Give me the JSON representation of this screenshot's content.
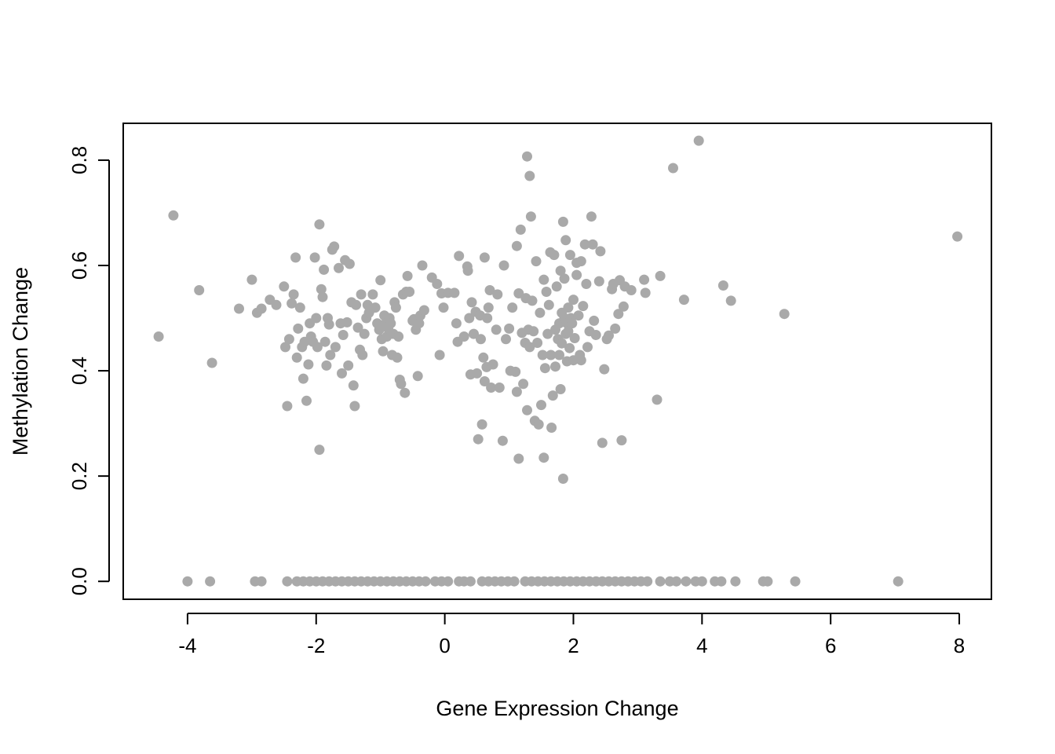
{
  "chart_data": {
    "type": "scatter",
    "title": "",
    "xlabel": "Gene Expression Change",
    "ylabel": "Methylation Change",
    "xlim": [
      -5.0,
      8.5
    ],
    "ylim": [
      -0.034,
      0.87
    ],
    "xticks": [
      -4,
      -2,
      0,
      2,
      4,
      6,
      8
    ],
    "yticks": [
      0.0,
      0.2,
      0.4,
      0.6,
      0.8
    ],
    "xtick_labels": [
      "-4",
      "-2",
      "0",
      "2",
      "4",
      "6",
      "8"
    ],
    "ytick_labels": [
      "0.0",
      "0.2",
      "0.4",
      "0.6",
      "0.8"
    ],
    "point_color": "#a9a9a9",
    "grid": false,
    "series": [
      {
        "points": [
          [
            -4.45,
            0.465
          ],
          [
            -4.22,
            0.695
          ],
          [
            -3.82,
            0.553
          ],
          [
            -3.62,
            0.415
          ],
          [
            -3.2,
            0.518
          ],
          [
            -3.0,
            0.573
          ],
          [
            -2.92,
            0.51
          ],
          [
            -2.85,
            0.518
          ],
          [
            -2.72,
            0.535
          ],
          [
            -2.62,
            0.525
          ],
          [
            -2.5,
            0.56
          ],
          [
            -2.48,
            0.445
          ],
          [
            -2.45,
            0.333
          ],
          [
            -2.42,
            0.46
          ],
          [
            -2.38,
            0.528
          ],
          [
            -2.35,
            0.545
          ],
          [
            -2.32,
            0.615
          ],
          [
            -2.3,
            0.425
          ],
          [
            -2.28,
            0.48
          ],
          [
            -2.25,
            0.52
          ],
          [
            -2.22,
            0.445
          ],
          [
            -2.2,
            0.385
          ],
          [
            -2.18,
            0.455
          ],
          [
            -2.15,
            0.343
          ],
          [
            -2.12,
            0.412
          ],
          [
            -2.1,
            0.49
          ],
          [
            -2.08,
            0.465
          ],
          [
            -2.05,
            0.455
          ],
          [
            -2.02,
            0.615
          ],
          [
            -2.0,
            0.5
          ],
          [
            -1.98,
            0.445
          ],
          [
            -1.95,
            0.25
          ],
          [
            -1.95,
            0.678
          ],
          [
            -1.92,
            0.555
          ],
          [
            -1.9,
            0.54
          ],
          [
            -1.88,
            0.592
          ],
          [
            -1.86,
            0.455
          ],
          [
            -1.84,
            0.41
          ],
          [
            -1.82,
            0.5
          ],
          [
            -1.8,
            0.488
          ],
          [
            -1.78,
            0.43
          ],
          [
            -1.75,
            0.63
          ],
          [
            -1.72,
            0.636
          ],
          [
            -1.7,
            0.445
          ],
          [
            -1.65,
            0.595
          ],
          [
            -1.62,
            0.49
          ],
          [
            -1.6,
            0.395
          ],
          [
            -1.58,
            0.468
          ],
          [
            -1.55,
            0.61
          ],
          [
            -1.52,
            0.492
          ],
          [
            -1.5,
            0.41
          ],
          [
            -1.48,
            0.603
          ],
          [
            -1.45,
            0.53
          ],
          [
            -1.42,
            0.372
          ],
          [
            -1.4,
            0.333
          ],
          [
            -1.38,
            0.525
          ],
          [
            -1.35,
            0.482
          ],
          [
            -1.32,
            0.44
          ],
          [
            -1.3,
            0.545
          ],
          [
            -1.28,
            0.43
          ],
          [
            -1.25,
            0.47
          ],
          [
            -1.22,
            0.5
          ],
          [
            -1.2,
            0.525
          ],
          [
            -1.18,
            0.51
          ],
          [
            -1.15,
            0.517
          ],
          [
            -1.12,
            0.545
          ],
          [
            -1.08,
            0.52
          ],
          [
            -1.05,
            0.49
          ],
          [
            -1.02,
            0.478
          ],
          [
            -1.0,
            0.572
          ],
          [
            -0.98,
            0.46
          ],
          [
            -0.96,
            0.437
          ],
          [
            -0.94,
            0.505
          ],
          [
            -0.92,
            0.49
          ],
          [
            -0.9,
            0.465
          ],
          [
            -0.88,
            0.48
          ],
          [
            -0.86,
            0.5
          ],
          [
            -0.84,
            0.49
          ],
          [
            -0.82,
            0.43
          ],
          [
            -0.8,
            0.47
          ],
          [
            -0.78,
            0.53
          ],
          [
            -0.76,
            0.52
          ],
          [
            -0.74,
            0.425
          ],
          [
            -0.72,
            0.465
          ],
          [
            -0.7,
            0.383
          ],
          [
            -0.68,
            0.375
          ],
          [
            -0.65,
            0.545
          ],
          [
            -0.62,
            0.358
          ],
          [
            -0.6,
            0.55
          ],
          [
            -0.58,
            0.58
          ],
          [
            -0.55,
            0.55
          ],
          [
            -0.5,
            0.495
          ],
          [
            -0.48,
            0.498
          ],
          [
            -0.45,
            0.478
          ],
          [
            -0.42,
            0.39
          ],
          [
            -0.4,
            0.49
          ],
          [
            -0.38,
            0.505
          ],
          [
            -0.35,
            0.6
          ],
          [
            -0.32,
            0.515
          ],
          [
            -0.2,
            0.577
          ],
          [
            -0.12,
            0.565
          ],
          [
            -0.08,
            0.43
          ],
          [
            -0.05,
            0.547
          ],
          [
            -0.02,
            0.52
          ],
          [
            0.05,
            0.548
          ],
          [
            0.15,
            0.548
          ],
          [
            0.18,
            0.49
          ],
          [
            0.2,
            0.455
          ],
          [
            0.22,
            0.618
          ],
          [
            0.3,
            0.465
          ],
          [
            0.35,
            0.598
          ],
          [
            0.36,
            0.59
          ],
          [
            0.38,
            0.5
          ],
          [
            0.4,
            0.393
          ],
          [
            0.42,
            0.53
          ],
          [
            0.45,
            0.47
          ],
          [
            0.48,
            0.512
          ],
          [
            0.5,
            0.395
          ],
          [
            0.52,
            0.27
          ],
          [
            0.55,
            0.505
          ],
          [
            0.56,
            0.46
          ],
          [
            0.58,
            0.298
          ],
          [
            0.6,
            0.425
          ],
          [
            0.62,
            0.615
          ],
          [
            0.62,
            0.38
          ],
          [
            0.65,
            0.407
          ],
          [
            0.66,
            0.5
          ],
          [
            0.68,
            0.52
          ],
          [
            0.7,
            0.553
          ],
          [
            0.72,
            0.368
          ],
          [
            0.75,
            0.412
          ],
          [
            0.8,
            0.478
          ],
          [
            0.82,
            0.545
          ],
          [
            0.85,
            0.368
          ],
          [
            0.9,
            0.267
          ],
          [
            0.92,
            0.6
          ],
          [
            0.95,
            0.46
          ],
          [
            1.0,
            0.48
          ],
          [
            1.02,
            0.4
          ],
          [
            1.05,
            0.52
          ],
          [
            1.1,
            0.398
          ],
          [
            1.12,
            0.36
          ],
          [
            1.12,
            0.637
          ],
          [
            1.15,
            0.547
          ],
          [
            1.15,
            0.233
          ],
          [
            1.18,
            0.668
          ],
          [
            1.2,
            0.472
          ],
          [
            1.22,
            0.375
          ],
          [
            1.25,
            0.453
          ],
          [
            1.26,
            0.538
          ],
          [
            1.28,
            0.325
          ],
          [
            1.28,
            0.807
          ],
          [
            1.3,
            0.478
          ],
          [
            1.32,
            0.445
          ],
          [
            1.32,
            0.77
          ],
          [
            1.34,
            0.693
          ],
          [
            1.36,
            0.533
          ],
          [
            1.38,
            0.475
          ],
          [
            1.4,
            0.305
          ],
          [
            1.42,
            0.608
          ],
          [
            1.44,
            0.453
          ],
          [
            1.46,
            0.298
          ],
          [
            1.48,
            0.51
          ],
          [
            1.5,
            0.335
          ],
          [
            1.52,
            0.43
          ],
          [
            1.54,
            0.573
          ],
          [
            1.54,
            0.235
          ],
          [
            1.56,
            0.405
          ],
          [
            1.58,
            0.55
          ],
          [
            1.6,
            0.47
          ],
          [
            1.62,
            0.525
          ],
          [
            1.64,
            0.625
          ],
          [
            1.65,
            0.43
          ],
          [
            1.66,
            0.292
          ],
          [
            1.68,
            0.353
          ],
          [
            1.7,
            0.62
          ],
          [
            1.72,
            0.478
          ],
          [
            1.72,
            0.408
          ],
          [
            1.74,
            0.56
          ],
          [
            1.76,
            0.46
          ],
          [
            1.78,
            0.49
          ],
          [
            1.78,
            0.43
          ],
          [
            1.8,
            0.59
          ],
          [
            1.8,
            0.365
          ],
          [
            1.82,
            0.51
          ],
          [
            1.82,
            0.452
          ],
          [
            1.84,
            0.683
          ],
          [
            1.84,
            0.195
          ],
          [
            1.86,
            0.5
          ],
          [
            1.86,
            0.575
          ],
          [
            1.88,
            0.648
          ],
          [
            1.88,
            0.47
          ],
          [
            1.9,
            0.49
          ],
          [
            1.9,
            0.418
          ],
          [
            1.92,
            0.52
          ],
          [
            1.92,
            0.475
          ],
          [
            1.94,
            0.443
          ],
          [
            1.95,
            0.62
          ],
          [
            1.96,
            0.5
          ],
          [
            1.98,
            0.49
          ],
          [
            2.0,
            0.535
          ],
          [
            2.0,
            0.42
          ],
          [
            2.02,
            0.462
          ],
          [
            2.05,
            0.605
          ],
          [
            2.05,
            0.582
          ],
          [
            2.08,
            0.505
          ],
          [
            2.1,
            0.43
          ],
          [
            2.12,
            0.608
          ],
          [
            2.12,
            0.42
          ],
          [
            2.15,
            0.523
          ],
          [
            2.18,
            0.64
          ],
          [
            2.2,
            0.565
          ],
          [
            2.22,
            0.445
          ],
          [
            2.25,
            0.475
          ],
          [
            2.28,
            0.693
          ],
          [
            2.3,
            0.64
          ],
          [
            2.32,
            0.495
          ],
          [
            2.35,
            0.468
          ],
          [
            2.4,
            0.57
          ],
          [
            2.42,
            0.627
          ],
          [
            2.45,
            0.263
          ],
          [
            2.48,
            0.403
          ],
          [
            2.52,
            0.46
          ],
          [
            2.55,
            0.467
          ],
          [
            2.6,
            0.555
          ],
          [
            2.62,
            0.565
          ],
          [
            2.65,
            0.48
          ],
          [
            2.7,
            0.508
          ],
          [
            2.72,
            0.572
          ],
          [
            2.75,
            0.268
          ],
          [
            2.78,
            0.522
          ],
          [
            2.8,
            0.56
          ],
          [
            2.9,
            0.553
          ],
          [
            3.1,
            0.573
          ],
          [
            3.12,
            0.548
          ],
          [
            3.3,
            0.345
          ],
          [
            3.35,
            0.58
          ],
          [
            3.55,
            0.785
          ],
          [
            3.72,
            0.535
          ],
          [
            3.95,
            0.837
          ],
          [
            4.33,
            0.562
          ],
          [
            4.45,
            0.533
          ],
          [
            5.28,
            0.508
          ],
          [
            7.97,
            0.655
          ],
          [
            -4.0,
            0.0
          ],
          [
            -3.65,
            0.0
          ],
          [
            -2.95,
            0.0
          ],
          [
            -2.85,
            0.0
          ],
          [
            -2.45,
            0.0
          ],
          [
            -2.3,
            0.0
          ],
          [
            -2.2,
            0.0
          ],
          [
            -2.1,
            0.0
          ],
          [
            -2.0,
            0.0
          ],
          [
            -1.9,
            0.0
          ],
          [
            -1.8,
            0.0
          ],
          [
            -1.7,
            0.0
          ],
          [
            -1.6,
            0.0
          ],
          [
            -1.5,
            0.0
          ],
          [
            -1.4,
            0.0
          ],
          [
            -1.3,
            0.0
          ],
          [
            -1.2,
            0.0
          ],
          [
            -1.1,
            0.0
          ],
          [
            -1.0,
            0.0
          ],
          [
            -0.9,
            0.0
          ],
          [
            -0.8,
            0.0
          ],
          [
            -0.7,
            0.0
          ],
          [
            -0.6,
            0.0
          ],
          [
            -0.5,
            0.0
          ],
          [
            -0.4,
            0.0
          ],
          [
            -0.3,
            0.0
          ],
          [
            -0.15,
            0.0
          ],
          [
            -0.05,
            0.0
          ],
          [
            0.05,
            0.0
          ],
          [
            0.22,
            0.0
          ],
          [
            0.3,
            0.0
          ],
          [
            0.4,
            0.0
          ],
          [
            0.58,
            0.0
          ],
          [
            0.68,
            0.0
          ],
          [
            0.78,
            0.0
          ],
          [
            0.88,
            0.0
          ],
          [
            0.98,
            0.0
          ],
          [
            1.08,
            0.0
          ],
          [
            1.25,
            0.0
          ],
          [
            1.35,
            0.0
          ],
          [
            1.45,
            0.0
          ],
          [
            1.55,
            0.0
          ],
          [
            1.65,
            0.0
          ],
          [
            1.75,
            0.0
          ],
          [
            1.85,
            0.0
          ],
          [
            1.95,
            0.0
          ],
          [
            2.05,
            0.0
          ],
          [
            2.15,
            0.0
          ],
          [
            2.25,
            0.0
          ],
          [
            2.35,
            0.0
          ],
          [
            2.45,
            0.0
          ],
          [
            2.55,
            0.0
          ],
          [
            2.65,
            0.0
          ],
          [
            2.75,
            0.0
          ],
          [
            2.85,
            0.0
          ],
          [
            2.95,
            0.0
          ],
          [
            3.05,
            0.0
          ],
          [
            3.15,
            0.0
          ],
          [
            3.35,
            0.0
          ],
          [
            3.5,
            0.0
          ],
          [
            3.6,
            0.0
          ],
          [
            3.75,
            0.0
          ],
          [
            3.9,
            0.0
          ],
          [
            4.0,
            0.0
          ],
          [
            4.2,
            0.0
          ],
          [
            4.3,
            0.0
          ],
          [
            4.52,
            0.0
          ],
          [
            4.95,
            0.0
          ],
          [
            5.02,
            0.0
          ],
          [
            5.45,
            0.0
          ],
          [
            7.05,
            0.0
          ]
        ]
      }
    ]
  }
}
